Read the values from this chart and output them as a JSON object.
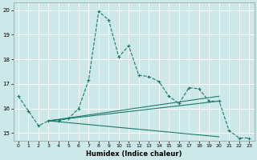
{
  "xlabel": "Humidex (Indice chaleur)",
  "xlim": [
    -0.5,
    23.5
  ],
  "ylim": [
    14.7,
    20.3
  ],
  "yticks": [
    15,
    16,
    17,
    18,
    19,
    20
  ],
  "xticks": [
    0,
    1,
    2,
    3,
    4,
    5,
    6,
    7,
    8,
    9,
    10,
    11,
    12,
    13,
    14,
    15,
    16,
    17,
    18,
    19,
    20,
    21,
    22,
    23
  ],
  "bg_color": "#cde8e8",
  "grid_color": "#b0d8d8",
  "line_color": "#1a7a6a",
  "main_series": {
    "x": [
      0,
      1,
      2,
      3,
      4,
      5,
      6,
      7,
      8,
      9,
      10,
      11,
      12,
      13,
      14,
      15,
      16,
      17,
      18,
      19,
      20,
      21,
      22,
      23
    ],
    "y": [
      16.5,
      15.9,
      15.3,
      15.5,
      15.5,
      15.6,
      16.0,
      17.15,
      19.95,
      19.6,
      18.1,
      18.55,
      17.35,
      17.3,
      17.1,
      16.5,
      16.2,
      16.85,
      16.8,
      16.3,
      16.3,
      15.1,
      14.8,
      14.8
    ]
  },
  "trend_lines": [
    {
      "x": [
        3,
        20
      ],
      "y": [
        15.5,
        16.5
      ]
    },
    {
      "x": [
        3,
        20
      ],
      "y": [
        15.5,
        16.3
      ]
    },
    {
      "x": [
        3,
        20
      ],
      "y": [
        15.5,
        14.85
      ]
    }
  ]
}
